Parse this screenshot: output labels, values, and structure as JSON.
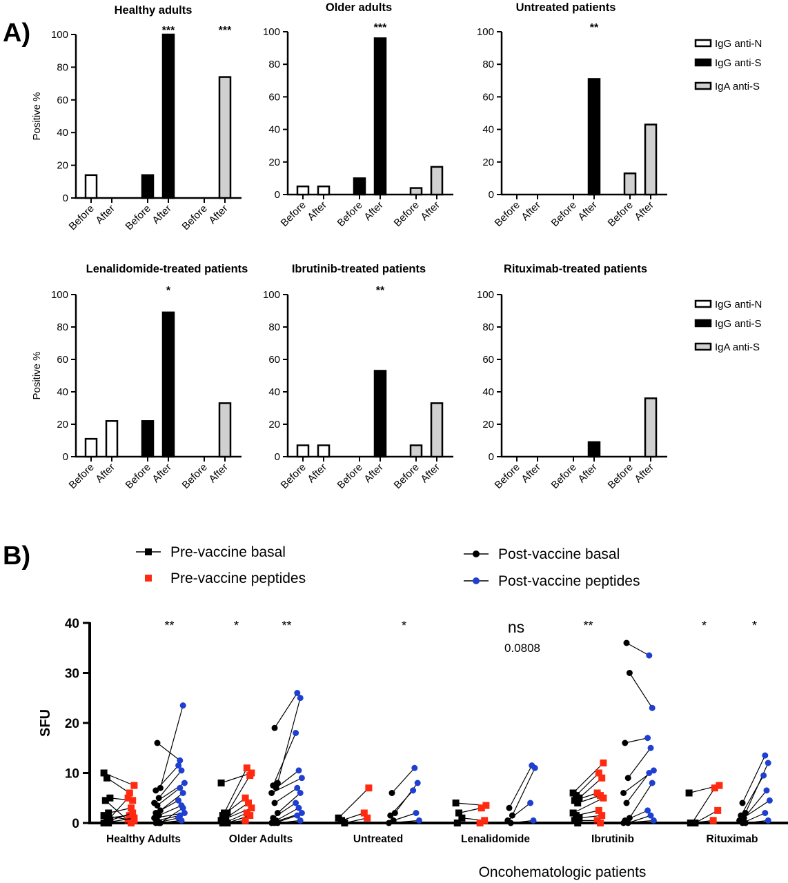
{
  "panel_labels": {
    "a": "A)",
    "b": "B)"
  },
  "colors": {
    "igg_n": "#ffffff",
    "igg_s": "#000000",
    "iga_s": "#d0d0d0",
    "stroke": "#000000",
    "pre_basal": "#000000",
    "pre_peptides": "#ff2a10",
    "post_basal": "#000000",
    "post_peptides": "#1f3fd0"
  },
  "chart_data": [
    {
      "type": "bar",
      "panel": "A",
      "ylabel": "Positive %",
      "ylim": [
        0,
        100
      ],
      "yticks": [
        0,
        20,
        40,
        60,
        80,
        100
      ],
      "xticklabels": [
        "Before",
        "After",
        "Before",
        "After",
        "Before",
        "After"
      ],
      "legend": {
        "placement": "right",
        "entries": [
          "IgG anti-N",
          "IgG anti-S",
          "IgA anti-S"
        ]
      },
      "subplots": [
        {
          "title": "Healthy adults",
          "values": [
            14,
            0,
            14,
            100,
            0,
            74
          ],
          "significance": [
            "",
            "",
            "",
            "***",
            "",
            "***"
          ]
        },
        {
          "title": "Older adults",
          "values": [
            5,
            5,
            10,
            96,
            4,
            17
          ],
          "significance": [
            "",
            "",
            "",
            "***",
            "",
            ""
          ]
        },
        {
          "title": "Untreated patients",
          "values": [
            0,
            0,
            0,
            71,
            13,
            43
          ],
          "significance": [
            "",
            "",
            "",
            "**",
            "",
            ""
          ]
        },
        {
          "title": "Lenalidomide-treated patients",
          "values": [
            11,
            22,
            22,
            89,
            0,
            33
          ],
          "significance": [
            "",
            "",
            "",
            "*",
            "",
            ""
          ]
        },
        {
          "title": "Ibrutinib-treated patients",
          "values": [
            7,
            7,
            0,
            53,
            7,
            33
          ],
          "significance": [
            "",
            "",
            "",
            "**",
            "",
            ""
          ]
        },
        {
          "title": "Rituximab-treated patients",
          "values": [
            0,
            0,
            0,
            9,
            0,
            36
          ],
          "significance": [
            "",
            "",
            "",
            "",
            "",
            ""
          ]
        }
      ]
    },
    {
      "type": "scatter",
      "panel": "B",
      "ylabel": "SFU",
      "xlabel": "Oncohematologic patients",
      "ylim": [
        0,
        40
      ],
      "yticks": [
        0,
        10,
        20,
        30,
        40
      ],
      "categories": [
        "Healthy Adults",
        "Older Adults",
        "Untreated",
        "Lenalidomide",
        "Ibrutinib",
        "Rituximab"
      ],
      "legend": [
        "Pre-vaccine basal",
        "Pre-vaccine peptides",
        "Post-vaccine basal",
        "Post-vaccine peptides"
      ],
      "groups": [
        {
          "name": "Healthy Adults",
          "sig_pre": "",
          "sig_post": "**",
          "pre_pairs": [
            [
              10,
              7.5
            ],
            [
              9,
              6
            ],
            [
              5,
              4.5
            ],
            [
              4.5,
              0.5
            ],
            [
              2,
              3
            ],
            [
              1.5,
              0.5
            ],
            [
              1,
              1.5
            ],
            [
              0.5,
              2
            ],
            [
              0,
              5
            ],
            [
              0,
              0
            ],
            [
              0,
              1
            ]
          ],
          "post_pairs": [
            [
              16,
              12.5
            ],
            [
              7,
              23.5
            ],
            [
              6.5,
              11.5
            ],
            [
              5,
              10.5
            ],
            [
              4,
              8
            ],
            [
              3.5,
              7
            ],
            [
              2.5,
              6
            ],
            [
              2,
              4.5
            ],
            [
              1.5,
              3.5
            ],
            [
              1,
              2
            ],
            [
              0.5,
              1.5
            ],
            [
              0,
              3
            ],
            [
              0,
              1
            ],
            [
              0,
              0.5
            ]
          ]
        },
        {
          "name": "Older Adults",
          "sig_pre": "*",
          "sig_post": "**",
          "pre_pairs": [
            [
              8,
              10
            ],
            [
              2,
              11
            ],
            [
              2,
              9.5
            ],
            [
              1.5,
              5
            ],
            [
              1,
              4
            ],
            [
              0.5,
              3
            ],
            [
              0,
              2
            ],
            [
              0,
              1.5
            ],
            [
              0,
              0.5
            ]
          ],
          "post_pairs": [
            [
              19,
              26
            ],
            [
              8,
              25
            ],
            [
              7.5,
              18
            ],
            [
              7,
              10.5
            ],
            [
              6,
              9
            ],
            [
              4,
              7
            ],
            [
              2,
              6
            ],
            [
              1,
              4
            ],
            [
              0.5,
              3
            ],
            [
              0,
              2
            ],
            [
              0,
              1.5
            ],
            [
              0,
              0.5
            ]
          ]
        },
        {
          "name": "Untreated",
          "sig_pre": "",
          "sig_post": "*",
          "pre_pairs": [
            [
              1,
              7
            ],
            [
              0.5,
              2
            ],
            [
              0,
              1
            ]
          ],
          "post_pairs": [
            [
              6,
              11
            ],
            [
              2,
              8
            ],
            [
              1.5,
              6.5
            ],
            [
              0.5,
              2
            ],
            [
              0,
              0.5
            ]
          ]
        },
        {
          "name": "Lenalidomide",
          "sig_pre": "",
          "sig_post": "ns",
          "p_value": "0.0808",
          "pre_pairs": [
            [
              4,
              3.5
            ],
            [
              2,
              3
            ],
            [
              1,
              0.5
            ],
            [
              0,
              0
            ]
          ],
          "post_pairs": [
            [
              3,
              11.5
            ],
            [
              1.5,
              11
            ],
            [
              0.5,
              4
            ],
            [
              0,
              0.5
            ]
          ]
        },
        {
          "name": "Ibrutinib",
          "sig_pre": "**",
          "sig_post": "",
          "pre_pairs": [
            [
              6,
              12
            ],
            [
              5.5,
              10
            ],
            [
              5,
              9
            ],
            [
              4.5,
              6
            ],
            [
              4,
              5.5
            ],
            [
              2,
              5
            ],
            [
              1.5,
              2.5
            ],
            [
              1,
              1.5
            ],
            [
              0.5,
              0.5
            ],
            [
              0,
              0
            ]
          ],
          "post_pairs": [
            [
              36,
              33.5
            ],
            [
              30,
              23
            ],
            [
              16,
              17
            ],
            [
              9,
              15
            ],
            [
              6,
              10.5
            ],
            [
              4,
              10
            ],
            [
              1,
              8
            ],
            [
              0.5,
              2.5
            ],
            [
              0,
              1.5
            ],
            [
              0,
              0.5
            ]
          ]
        },
        {
          "name": "Rituximab",
          "sig_pre": "*",
          "sig_post": "*",
          "pre_pairs": [
            [
              6,
              7.5
            ],
            [
              0,
              7
            ],
            [
              0,
              2.5
            ],
            [
              0,
              0.5
            ]
          ],
          "post_pairs": [
            [
              4,
              13.5
            ],
            [
              2,
              12
            ],
            [
              1.5,
              9.5
            ],
            [
              1,
              6.5
            ],
            [
              0.5,
              4.5
            ],
            [
              0,
              2
            ],
            [
              0,
              0.5
            ]
          ]
        }
      ]
    }
  ]
}
